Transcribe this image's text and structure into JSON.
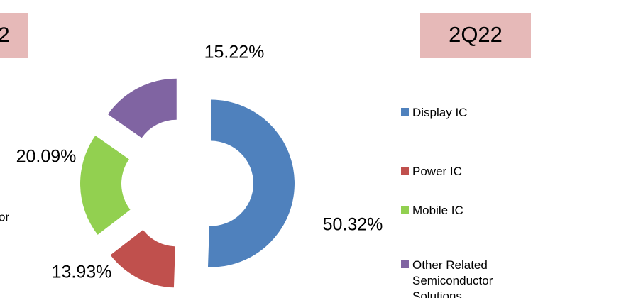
{
  "fragments": [
    "2",
    "or"
  ],
  "chart_data": {
    "type": "donut",
    "title": "2Q22",
    "categories": [
      "Display IC",
      "Power IC",
      "Mobile IC",
      "Other Related Semiconductor Solutions"
    ],
    "values": [
      50.32,
      13.93,
      20.09,
      15.22
    ],
    "value_labels": [
      "50.32%",
      "13.93%",
      "20.09%",
      "15.22%"
    ],
    "colors": [
      "#4f81bd",
      "#c0504d",
      "#92d050",
      "#8064a2"
    ],
    "legend": "right"
  }
}
